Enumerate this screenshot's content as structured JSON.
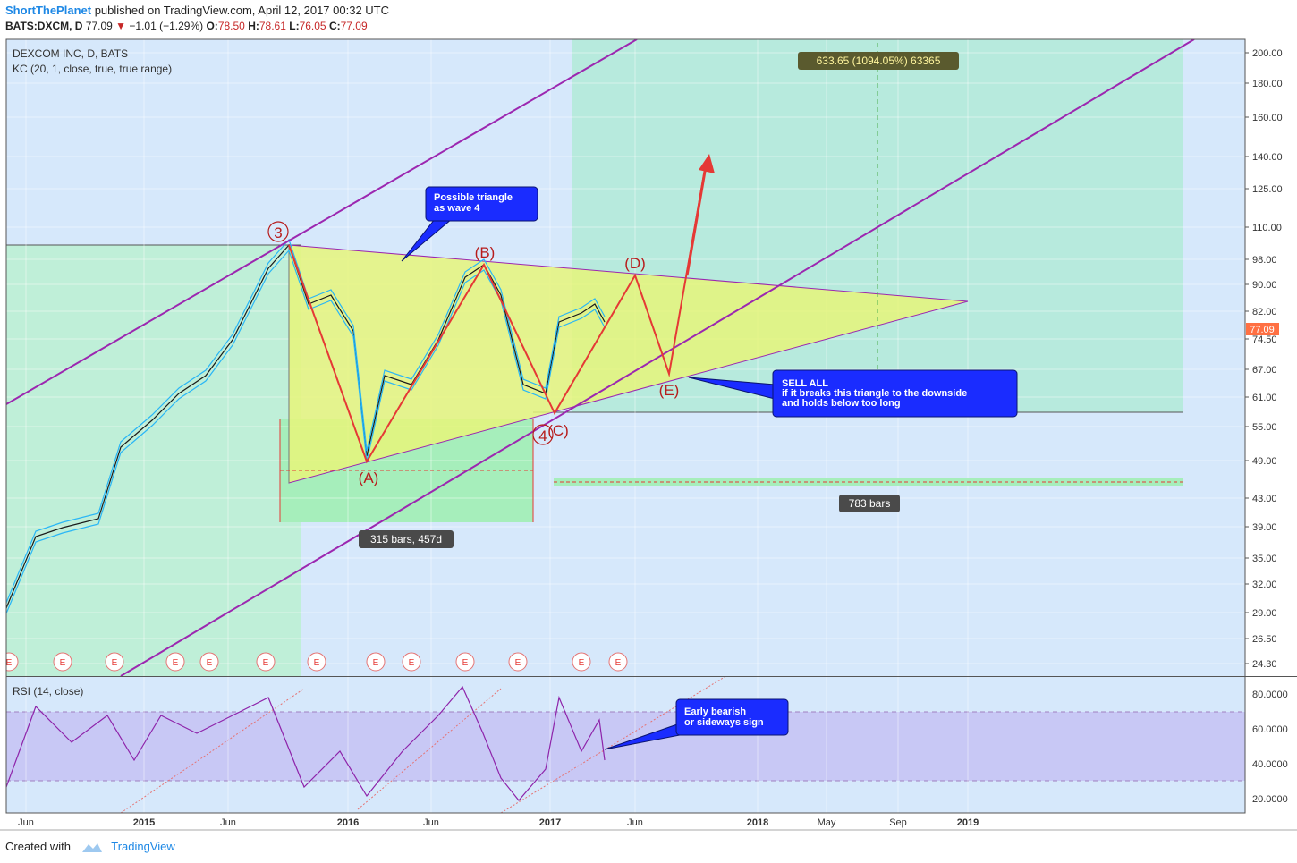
{
  "header": {
    "author": "ShortThePlanet",
    "published_text": "published on TradingView.com, April 12, 2017 00:32 UTC",
    "symbol_line": "BATS:DXCM, D",
    "last": "77.09",
    "change": "−1.01 (−1.29%)",
    "o_label": "O:",
    "o": "78.50",
    "h_label": "H:",
    "h": "78.61",
    "l_label": "L:",
    "l": "76.05",
    "c_label": "C:",
    "c": "77.09"
  },
  "chart": {
    "title": "DEXCOM INC, D, BATS",
    "indicator": "KC (20, 1, close, true, true range)",
    "price_ticks": [
      "200.00",
      "180.00",
      "160.00",
      "140.00",
      "125.00",
      "110.00",
      "98.00",
      "90.00",
      "82.00",
      "74.50",
      "67.00",
      "61.00",
      "55.00",
      "49.00",
      "43.00",
      "39.00",
      "35.00",
      "32.00",
      "29.00",
      "26.50",
      "24.30"
    ],
    "current_price": "77.09",
    "time_labels": [
      "Jun",
      "2015",
      "Jun",
      "2016",
      "Jun",
      "2017",
      "Jun",
      "2018",
      "May",
      "Sep",
      "2019"
    ],
    "annotations": {
      "target_label": "633.65 (1094.05%) 63365",
      "bars_label_1": "315 bars, 457d",
      "bars_label_2": "783 bars",
      "callout_triangle": [
        "Possible triangle",
        "as wave 4"
      ],
      "callout_sell": [
        "SELL ALL",
        "if it breaks this triangle to the downside",
        "and holds below too long"
      ],
      "callout_rsi": [
        "Early bearish",
        "or sideways sign"
      ],
      "wave_labels": [
        "3",
        "(A)",
        "(B)",
        "4",
        "(C)",
        "(D)",
        "(E)"
      ],
      "earnings_marker": "E"
    },
    "colors": {
      "channel": "#9c27b0",
      "triangle_fill": "#e6f57a",
      "wave_path": "#e53935",
      "label_red": "#b71c1c",
      "callout_bg": "#1a2cff",
      "bg_blue": "#d6e8fb",
      "bg_green": "#bfefd8",
      "rsi_band": "#c8c8f5"
    }
  },
  "rsi": {
    "title": "RSI (14, close)",
    "ticks": [
      "80.0000",
      "60.0000",
      "40.0000",
      "20.0000"
    ]
  },
  "footer": {
    "created_with": "Created with",
    "brand": "TradingView"
  }
}
